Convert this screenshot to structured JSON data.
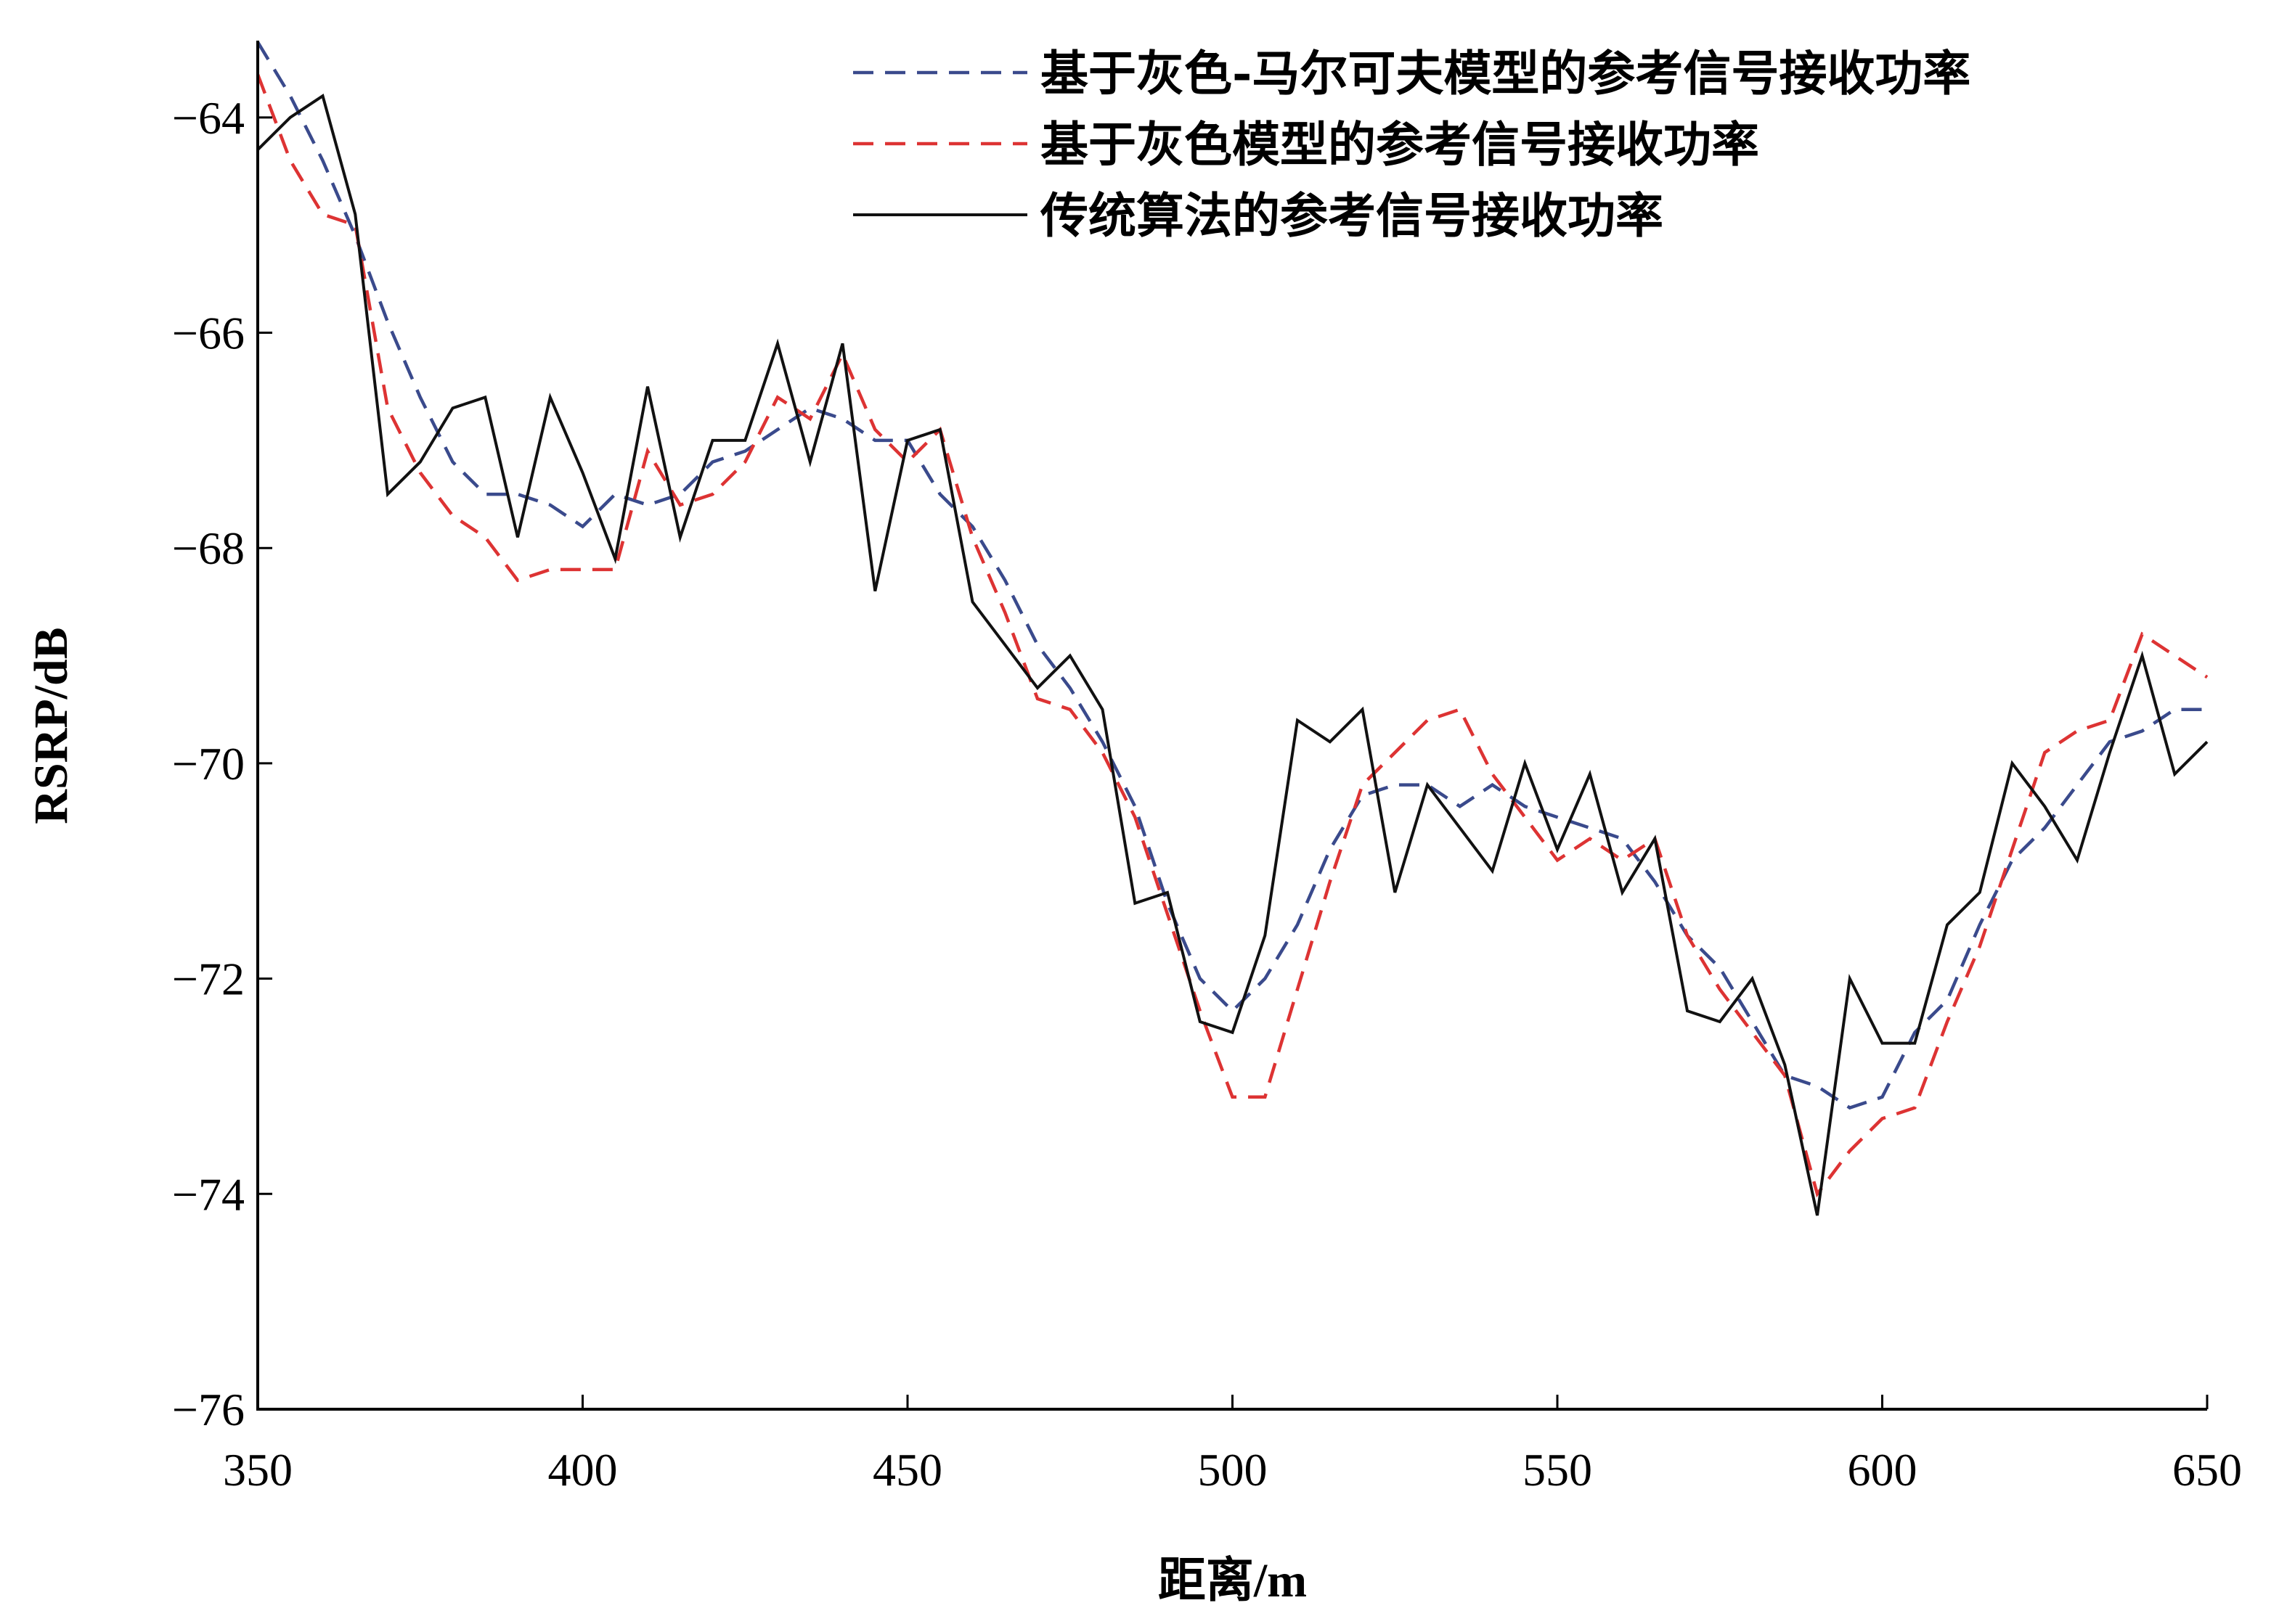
{
  "chart_data": {
    "type": "line",
    "xlabel": "距离/m",
    "ylabel": "RSRP/dB",
    "xlim": [
      350,
      650
    ],
    "ylim": [
      -76,
      -63.3
    ],
    "xticks": [
      350,
      400,
      450,
      500,
      550,
      600,
      650
    ],
    "xtick_labels": [
      "350",
      "400",
      "450",
      "500",
      "550",
      "600",
      "650"
    ],
    "yticks": [
      -64,
      -66,
      -68,
      -70,
      -72,
      -74,
      -76
    ],
    "ytick_labels": [
      "−64",
      "−66",
      "−68",
      "−70",
      "−72",
      "−74",
      "−76"
    ],
    "legend_position": "top-right",
    "x": [
      350,
      355,
      360,
      365,
      370,
      375,
      380,
      385,
      390,
      395,
      400,
      405,
      410,
      415,
      420,
      425,
      430,
      435,
      440,
      445,
      450,
      455,
      460,
      465,
      470,
      475,
      480,
      485,
      490,
      495,
      500,
      505,
      510,
      515,
      520,
      525,
      530,
      535,
      540,
      545,
      550,
      555,
      560,
      565,
      570,
      575,
      580,
      585,
      590,
      595,
      600,
      605,
      610,
      615,
      620,
      625,
      630,
      635,
      640,
      645,
      650
    ],
    "series": [
      {
        "name": "基于灰色-马尔可夫模型的参考信号接收功率",
        "color": "#3a4a8c",
        "style": "dashed",
        "values": [
          -63.3,
          -63.8,
          -64.4,
          -65.1,
          -65.9,
          -66.6,
          -67.2,
          -67.5,
          -67.5,
          -67.6,
          -67.8,
          -67.5,
          -67.6,
          -67.5,
          -67.2,
          -67.1,
          -66.9,
          -66.7,
          -66.8,
          -67.0,
          -67.0,
          -67.5,
          -67.8,
          -68.3,
          -68.9,
          -69.3,
          -69.8,
          -70.4,
          -71.3,
          -72.0,
          -72.3,
          -72.0,
          -71.5,
          -70.8,
          -70.3,
          -70.2,
          -70.2,
          -70.4,
          -70.2,
          -70.4,
          -70.5,
          -70.6,
          -70.7,
          -71.1,
          -71.6,
          -71.9,
          -72.4,
          -72.9,
          -73.0,
          -73.2,
          -73.1,
          -72.5,
          -72.2,
          -71.5,
          -70.9,
          -70.6,
          -70.2,
          -69.8,
          -69.7,
          -69.5,
          -69.5
        ]
      },
      {
        "name": "基于灰色模型的参考信号接收功率",
        "color": "#dd3333",
        "style": "dashed",
        "values": [
          -63.6,
          -64.4,
          -64.9,
          -65.0,
          -66.7,
          -67.3,
          -67.7,
          -67.9,
          -68.3,
          -68.2,
          -68.2,
          -68.2,
          -67.1,
          -67.6,
          -67.5,
          -67.2,
          -66.6,
          -66.8,
          -66.2,
          -66.9,
          -67.2,
          -66.9,
          -67.9,
          -68.6,
          -69.4,
          -69.5,
          -69.9,
          -70.5,
          -71.4,
          -72.3,
          -73.1,
          -73.1,
          -72.1,
          -71.1,
          -70.2,
          -69.9,
          -69.6,
          -69.5,
          -70.1,
          -70.5,
          -70.9,
          -70.7,
          -70.9,
          -70.7,
          -71.6,
          -72.1,
          -72.5,
          -72.9,
          -74.0,
          -73.6,
          -73.3,
          -73.2,
          -72.4,
          -71.7,
          -70.8,
          -69.9,
          -69.7,
          -69.6,
          -68.8,
          -69.0,
          -69.2
        ]
      },
      {
        "name": "传统算法的参考信号接收功率",
        "color": "#111111",
        "style": "solid",
        "values": [
          -64.3,
          -64.0,
          -63.8,
          -64.9,
          -67.5,
          -67.2,
          -66.7,
          -66.6,
          -67.9,
          -66.6,
          -67.3,
          -68.1,
          -66.5,
          -67.9,
          -67.0,
          -67.0,
          -66.1,
          -67.2,
          -66.1,
          -68.4,
          -67.0,
          -66.9,
          -68.5,
          -68.9,
          -69.3,
          -69.0,
          -69.5,
          -71.3,
          -71.2,
          -72.4,
          -72.5,
          -71.6,
          -69.6,
          -69.8,
          -69.5,
          -71.2,
          -70.2,
          -70.6,
          -71.0,
          -70.0,
          -70.8,
          -70.1,
          -71.2,
          -70.7,
          -72.3,
          -72.4,
          -72.0,
          -72.8,
          -74.2,
          -72.0,
          -72.6,
          -72.6,
          -71.5,
          -71.2,
          -70.0,
          -70.4,
          -70.9,
          -69.9,
          -69.0,
          -70.1,
          -69.8
        ]
      }
    ]
  }
}
